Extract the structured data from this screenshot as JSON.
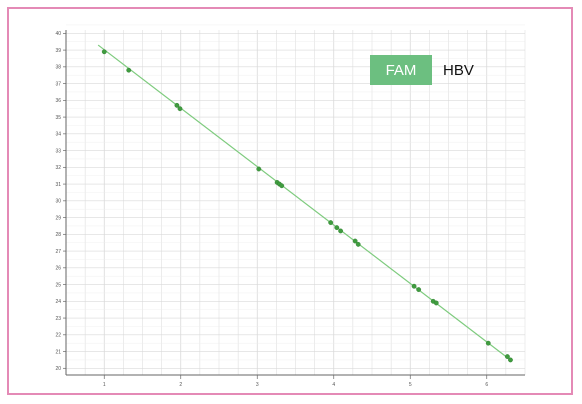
{
  "chart_data": {
    "type": "scatter",
    "title": "",
    "xlabel": "",
    "ylabel": "",
    "xlim": [
      0.5,
      6.5
    ],
    "ylim": [
      19.6,
      40.2
    ],
    "x_ticks": [
      1,
      2,
      3,
      4,
      5,
      6
    ],
    "y_ticks": [
      20,
      21,
      22,
      23,
      24,
      25,
      26,
      27,
      28,
      29,
      30,
      31,
      32,
      33,
      34,
      35,
      36,
      37,
      38,
      39,
      40
    ],
    "grid": true,
    "legend": {
      "channel": "FAM",
      "target": "HBV",
      "placement": "top-right"
    },
    "series": [
      {
        "points": [
          [
            1.0,
            38.9
          ],
          [
            1.32,
            37.8
          ],
          [
            1.95,
            35.7
          ],
          [
            1.99,
            35.5
          ],
          [
            3.02,
            31.9
          ],
          [
            3.26,
            31.1
          ],
          [
            3.29,
            31.0
          ],
          [
            3.32,
            30.9
          ],
          [
            3.96,
            28.7
          ],
          [
            4.04,
            28.4
          ],
          [
            4.09,
            28.2
          ],
          [
            4.28,
            27.6
          ],
          [
            4.32,
            27.4
          ],
          [
            5.05,
            24.9
          ],
          [
            5.11,
            24.7
          ],
          [
            5.3,
            24.0
          ],
          [
            5.34,
            23.9
          ],
          [
            6.02,
            21.5
          ],
          [
            6.27,
            20.7
          ],
          [
            6.31,
            20.5
          ]
        ],
        "color": "#3f9c3f"
      }
    ],
    "fit_line": {
      "x": [
        0.92,
        6.28
      ],
      "y": [
        39.3,
        20.6
      ],
      "color": "#7ecb7e"
    }
  },
  "colors": {
    "frame": "#e48ab6",
    "badge": "#6cbf80",
    "grid": "#d9d9d9"
  }
}
